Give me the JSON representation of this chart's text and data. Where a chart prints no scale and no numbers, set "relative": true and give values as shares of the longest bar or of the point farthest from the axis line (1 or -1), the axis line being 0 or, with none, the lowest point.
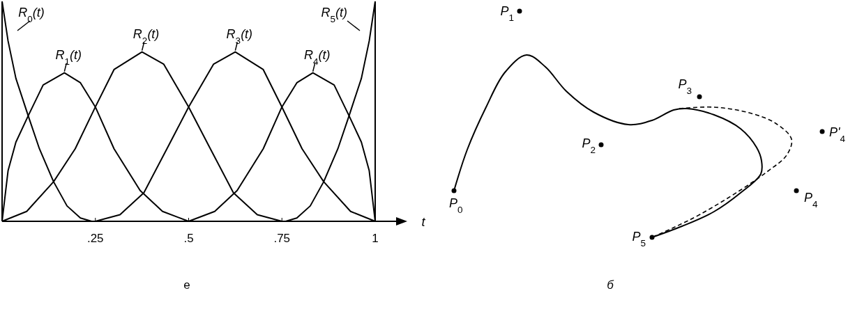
{
  "chart_data": [
    {
      "type": "line",
      "relative": true,
      "xlabel": "t",
      "xlim": [
        0,
        1
      ],
      "xticks": [
        {
          "value": 0.25,
          "label": ".25"
        },
        {
          "value": 0.5,
          "label": ".5"
        },
        {
          "value": 0.75,
          "label": ".75"
        },
        1
      ],
      "ref_lines": [
        {
          "axis": "x",
          "value": 1
        }
      ],
      "line_style": "solid",
      "marker": "none",
      "annotations": [
        "e"
      ],
      "series": [
        {
          "name": "R$_{0}$(t)",
          "color": "#000000",
          "x": [
            0,
            0.016,
            0.037,
            0.07,
            0.1,
            0.138,
            0.174,
            0.21,
            0.24
          ],
          "values": [
            1,
            0.82,
            0.65,
            0.48,
            0.33,
            0.18,
            0.07,
            0.015,
            0
          ]
        },
        {
          "name": "R$_{1}$(t)",
          "color": "#000000",
          "x": [
            0,
            0.016,
            0.037,
            0.07,
            0.11,
            0.167,
            0.21,
            0.25,
            0.3,
            0.37,
            0.43,
            0.5
          ],
          "values": [
            0,
            0.23,
            0.36,
            0.48,
            0.62,
            0.675,
            0.63,
            0.52,
            0.33,
            0.14,
            0.045,
            0
          ]
        },
        {
          "name": "R$_{2}$(t)",
          "color": "#000000",
          "x": [
            0,
            0.066,
            0.138,
            0.196,
            0.25,
            0.3,
            0.375,
            0.433,
            0.5,
            0.555,
            0.62,
            0.684,
            0.75
          ],
          "values": [
            0,
            0.045,
            0.18,
            0.33,
            0.52,
            0.69,
            0.77,
            0.715,
            0.52,
            0.34,
            0.13,
            0.03,
            0
          ]
        },
        {
          "name": "R$_{3}$(t)",
          "color": "#000000",
          "x": [
            0.25,
            0.316,
            0.38,
            0.445,
            0.5,
            0.567,
            0.625,
            0.7,
            0.75,
            0.804,
            0.862,
            0.934,
            1
          ],
          "values": [
            0,
            0.03,
            0.13,
            0.34,
            0.52,
            0.715,
            0.77,
            0.69,
            0.52,
            0.33,
            0.18,
            0.045,
            0
          ]
        },
        {
          "name": "R$_{4}$(t)",
          "color": "#000000",
          "x": [
            0.5,
            0.57,
            0.63,
            0.7,
            0.75,
            0.79,
            0.833,
            0.89,
            0.93,
            0.963,
            0.984,
            1
          ],
          "values": [
            0,
            0.045,
            0.14,
            0.33,
            0.52,
            0.63,
            0.675,
            0.62,
            0.48,
            0.36,
            0.23,
            0
          ]
        },
        {
          "name": "R$_{5}$(t)",
          "color": "#000000",
          "x": [
            0.76,
            0.79,
            0.826,
            0.862,
            0.9,
            0.93,
            0.963,
            0.984,
            1
          ],
          "values": [
            0,
            0.015,
            0.07,
            0.18,
            0.33,
            0.48,
            0.65,
            0.82,
            1
          ]
        }
      ]
    },
    {
      "type": "other",
      "annotations": [
        "P$_{0}$",
        "P$_{1}$",
        "P$_{2}$",
        "P$_{3}$",
        "P'$_{4}$",
        "P$_{4}$",
        "P$_{5}$",
        "б"
      ]
    }
  ]
}
